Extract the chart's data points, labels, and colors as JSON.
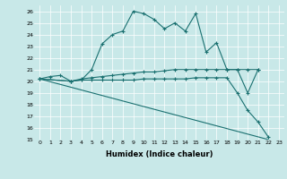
{
  "xlabel": "Humidex (Indice chaleur)",
  "background_color": "#c8e8e8",
  "grid_color": "#ffffff",
  "line_color": "#1a7070",
  "xlim": [
    -0.5,
    23.5
  ],
  "ylim": [
    15,
    26.5
  ],
  "xticks": [
    0,
    1,
    2,
    3,
    4,
    5,
    6,
    7,
    8,
    9,
    10,
    11,
    12,
    13,
    14,
    15,
    16,
    17,
    18,
    19,
    20,
    21,
    22,
    23
  ],
  "yticks": [
    15,
    16,
    17,
    18,
    19,
    20,
    21,
    22,
    23,
    24,
    25,
    26
  ],
  "line1_x": [
    0,
    1,
    2,
    3,
    4,
    5,
    6,
    7,
    8,
    9,
    10,
    11,
    12,
    13,
    14,
    15,
    16,
    17,
    18,
    19,
    20,
    21
  ],
  "line1_y": [
    20.2,
    20.4,
    20.5,
    20.0,
    20.1,
    21.0,
    23.2,
    24.0,
    24.3,
    26.0,
    25.8,
    25.3,
    24.5,
    25.0,
    24.3,
    25.8,
    22.5,
    23.3,
    21.0,
    21.0,
    19.0,
    21.0
  ],
  "line2_x": [
    0,
    3,
    4,
    5,
    6,
    7,
    8,
    9,
    10,
    11,
    12,
    13,
    14,
    15,
    16,
    17,
    18,
    19,
    20,
    21
  ],
  "line2_y": [
    20.2,
    20.0,
    20.2,
    20.3,
    20.4,
    20.5,
    20.6,
    20.7,
    20.8,
    20.8,
    20.9,
    21.0,
    21.0,
    21.0,
    21.0,
    21.0,
    21.0,
    21.0,
    21.0,
    21.0
  ],
  "line3_x": [
    0,
    3,
    4,
    5,
    6,
    7,
    8,
    9,
    10,
    11,
    12,
    13,
    14,
    15,
    16,
    17,
    18,
    19,
    20,
    21,
    22
  ],
  "line3_y": [
    20.2,
    20.0,
    20.1,
    20.1,
    20.1,
    20.1,
    20.1,
    20.1,
    20.2,
    20.2,
    20.2,
    20.2,
    20.2,
    20.3,
    20.3,
    20.3,
    20.3,
    19.0,
    17.5,
    16.5,
    15.2
  ],
  "line4_x": [
    0,
    22
  ],
  "line4_y": [
    20.2,
    15.0
  ]
}
